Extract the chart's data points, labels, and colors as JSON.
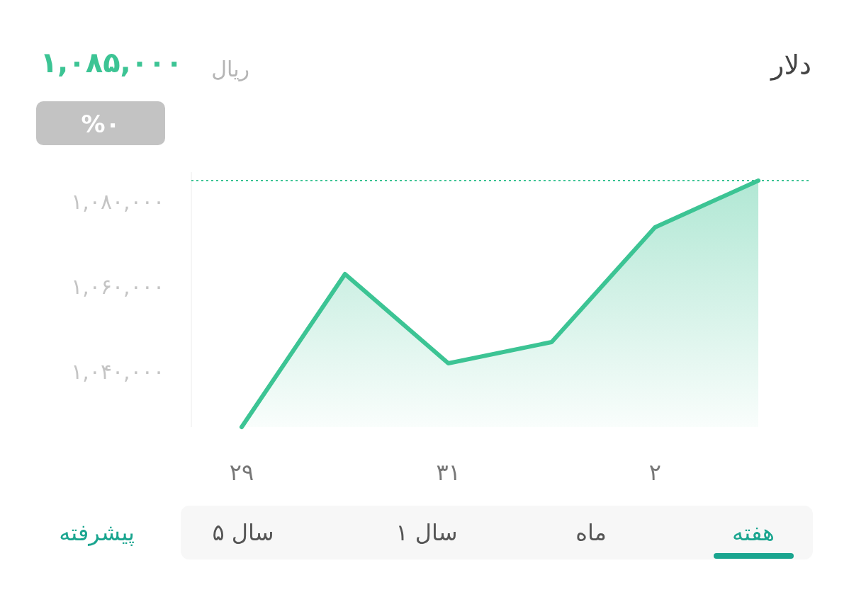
{
  "chart_data": {
    "type": "area",
    "title": "دلار",
    "categories": [
      "۲۹",
      null,
      "۳۱",
      null,
      "۲",
      null
    ],
    "series": [
      {
        "color": "#3cc494",
        "values": [
          1027000,
          1063000,
          1042000,
          1047000,
          1074000,
          1085000
        ]
      }
    ],
    "ylim": [
      1027000,
      1087000
    ],
    "yticks": [
      {
        "value": 1040000,
        "label": "۱,۰۴۰,۰۰۰"
      },
      {
        "value": 1060000,
        "label": "۱,۰۶۰,۰۰۰"
      },
      {
        "value": 1080000,
        "label": "۱,۰۸۰,۰۰۰"
      }
    ],
    "ref_lines": [
      {
        "axis": "y",
        "value": 1085000,
        "color": "#3cc494",
        "line_style": "dotted"
      }
    ],
    "grid": false,
    "annotations": [
      "۱,۰۸۵,۰۰۰",
      "ریال",
      "%۰",
      "هفته",
      "ماه",
      "۱ سال",
      "۵ سال",
      "پیشرفته"
    ]
  }
}
